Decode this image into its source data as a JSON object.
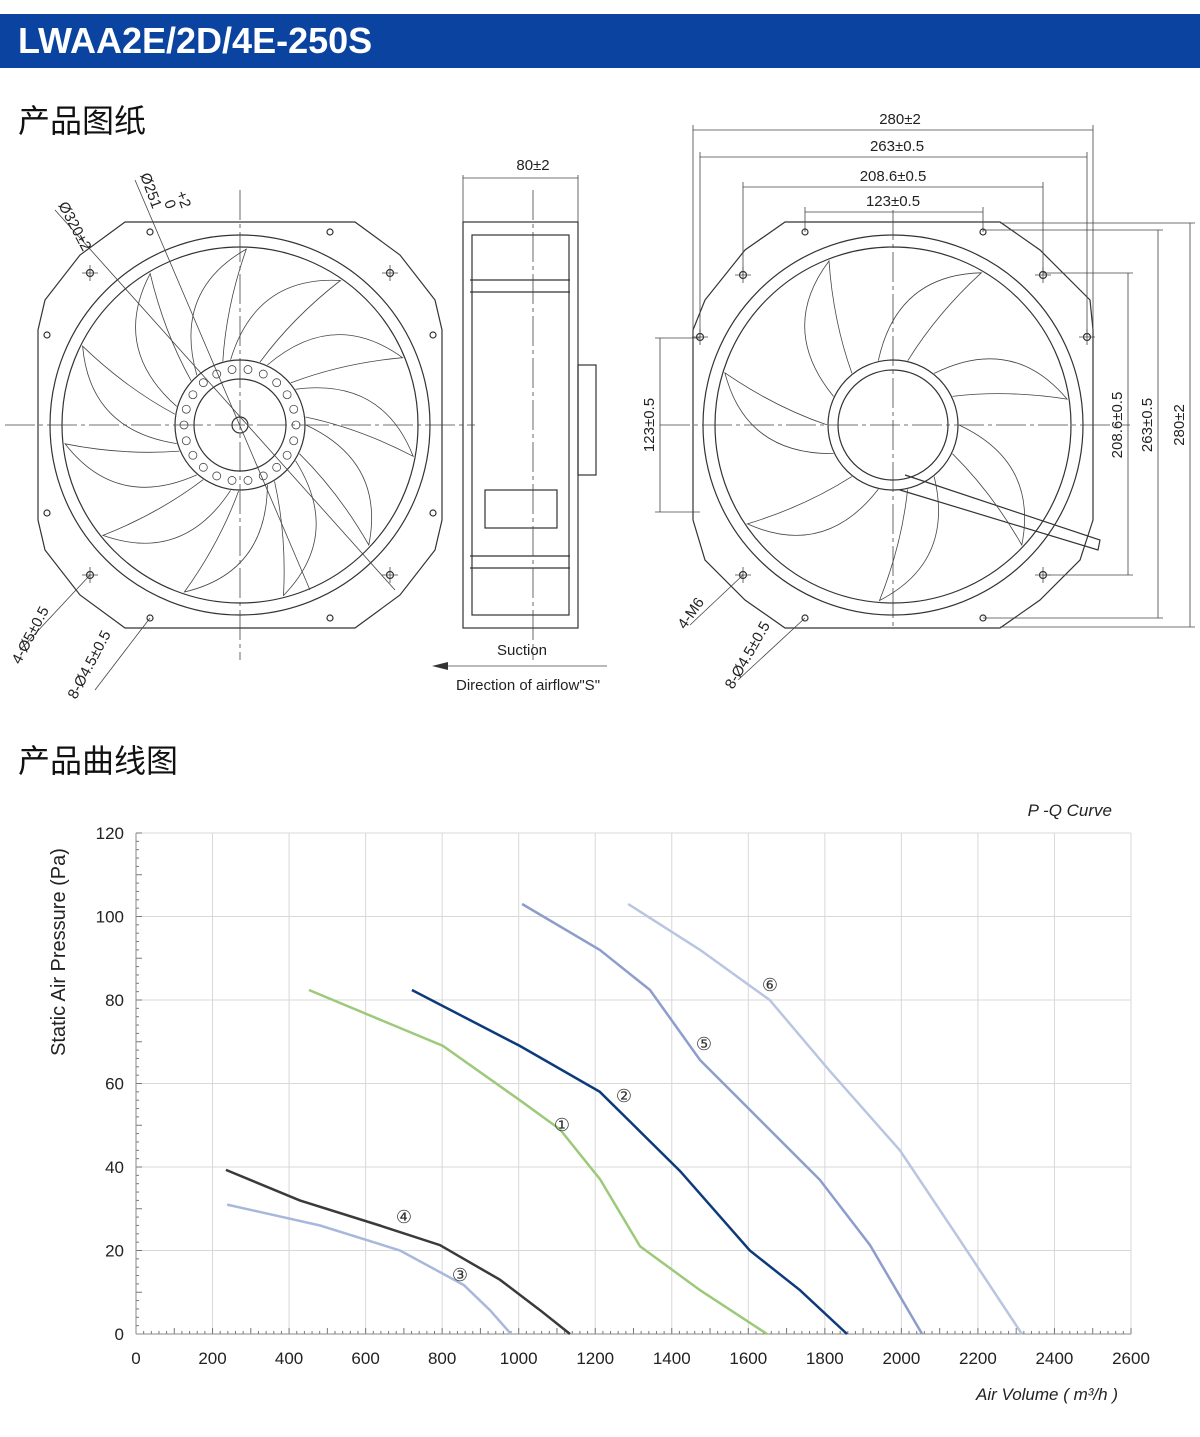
{
  "header": {
    "title": "LWAA2E/2D/4E-250S"
  },
  "drawing": {
    "section_title": "产品图纸",
    "front": {
      "outer_dia": "Ø320±2",
      "inner_dia": "Ø251",
      "inner_tol_upper": "+2",
      "inner_tol_lower": "0",
      "holes_a": "4-Ø5±0.5",
      "holes_b": "8-Ø4.5±0.5"
    },
    "side": {
      "depth": "80±2",
      "suction": "Suction",
      "airflow": "Direction of airflow\"S\""
    },
    "back": {
      "w1": "280±2",
      "w2": "263±0.5",
      "w3": "208.6±0.5",
      "w4": "123±0.5",
      "h1": "123±0.5",
      "h2": "208.6±0.5",
      "h3": "263±0.5",
      "h4": "280±2",
      "thread": "4-M6",
      "holes": "8-Ø4.5±0.5"
    }
  },
  "curve_section": {
    "title": "产品曲线图"
  },
  "chart_data": {
    "type": "line",
    "title": "P -Q Curve",
    "x_label": "Air Volume ( m³/h )",
    "y_label": "Static Air Pressure  (Pa)",
    "xlim": [
      0,
      2600
    ],
    "xticks": [
      0,
      200,
      400,
      600,
      800,
      1000,
      1200,
      1400,
      1600,
      1800,
      2000,
      2200,
      2400,
      2600
    ],
    "ylim": [
      0,
      120
    ],
    "yticks": [
      0,
      20,
      40,
      60,
      80,
      100,
      120
    ],
    "grid": true,
    "series": [
      {
        "name": "①",
        "color": "#9dc97a",
        "x": [
          452,
          802,
          1003,
          1108,
          1213,
          1317,
          1474,
          1649
        ],
        "values": [
          82.4,
          69,
          56,
          49,
          37,
          21,
          10.5,
          0
        ]
      },
      {
        "name": "②",
        "color": "#0d3a7a",
        "x": [
          721,
          1003,
          1212,
          1422,
          1604,
          1735,
          1858
        ],
        "values": [
          82.4,
          69,
          58,
          39,
          20,
          10.5,
          0
        ]
      },
      {
        "name": "③",
        "color": "#a8b8dc",
        "x": [
          238,
          481,
          690,
          857,
          925,
          980
        ],
        "values": [
          31,
          26,
          20,
          11.7,
          5.7,
          0
        ]
      },
      {
        "name": "④",
        "color": "#3a3a3a",
        "x": [
          235,
          428,
          637,
          794,
          951,
          1056,
          1134
        ],
        "values": [
          39.3,
          32,
          26,
          21.3,
          13,
          5.7,
          0
        ]
      },
      {
        "name": "⑤",
        "color": "#8d9dcc",
        "x": [
          1009,
          1212,
          1343,
          1474,
          1604,
          1787,
          1918,
          2054
        ],
        "values": [
          103,
          92,
          82.4,
          65.6,
          53.7,
          36.9,
          21.3,
          0
        ]
      },
      {
        "name": "⑥",
        "color": "#b8c6e2",
        "x": [
          1286,
          1474,
          1656,
          1813,
          1996,
          2153,
          2315
        ],
        "values": [
          103,
          92,
          80,
          63,
          44,
          22.5,
          0
        ]
      }
    ]
  }
}
